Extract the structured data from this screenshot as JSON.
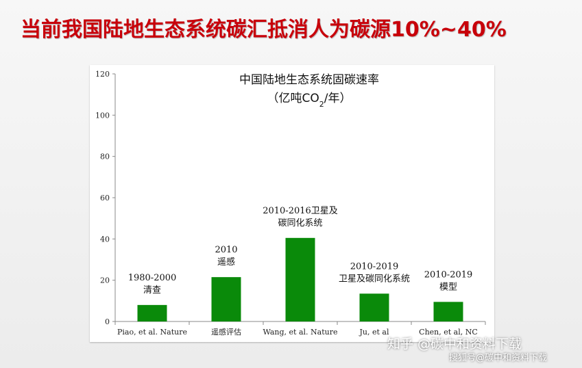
{
  "slide": {
    "title": "当前我国陆地生态系统碳汇抵消人为碳源10%~40%"
  },
  "chart_data": {
    "type": "bar",
    "title_line1": "中国陆地生态系统固碳速率",
    "title_line2_prefix": "（亿吨CO",
    "title_line2_sub": "2",
    "title_line2_suffix": "/年）",
    "categories": [
      "Piao, et al. Nature",
      "遥感评估",
      "Wang, et al. Nature",
      "Ju, et al",
      "Chen, et al, NC"
    ],
    "values": [
      8,
      21.5,
      40.5,
      13.5,
      9.5
    ],
    "data_labels": [
      [
        "1980-2000",
        "清查"
      ],
      [
        "2010",
        "遥感"
      ],
      [
        "2010-2016卫星及",
        "碳同化系统"
      ],
      [
        "2010-2019",
        "卫星及碳同化系统"
      ],
      [
        "2010-2019",
        "模型"
      ]
    ],
    "yticks": [
      "0",
      "20",
      "40",
      "60",
      "80",
      "100",
      "120"
    ],
    "ylim": [
      0,
      120
    ],
    "bar_color": "#0a8a0a",
    "grid": false,
    "legend": "none"
  },
  "watermarks": {
    "line1": "知乎 @碳中和资料下载",
    "line2": "搜狐号@碳中和资料下载"
  }
}
